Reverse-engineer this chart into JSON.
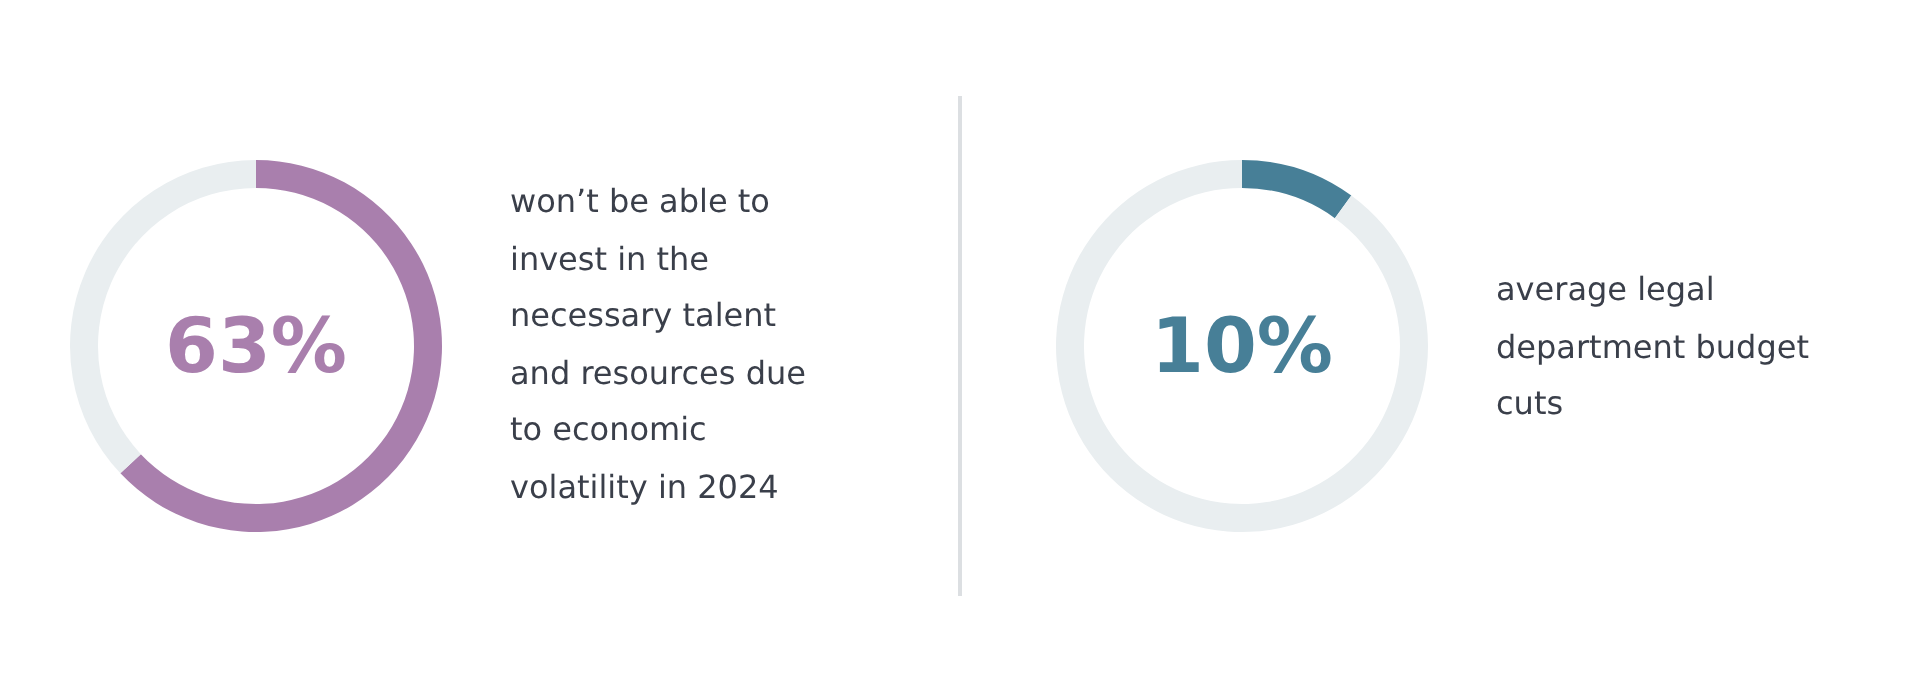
{
  "chart_data": [
    {
      "type": "donut",
      "categories": [
        null,
        null
      ],
      "values": [
        63,
        37
      ],
      "colors": [
        "#a97fad",
        "#e9eef0"
      ],
      "annotations": [
        "63%",
        "won’t be able to invest in the necessary talent and resources due to economic volatility in 2024"
      ]
    },
    {
      "type": "donut",
      "categories": [
        null,
        null
      ],
      "values": [
        10,
        90
      ],
      "colors": [
        "#477f97",
        "#e9eef0"
      ],
      "annotations": [
        "10%",
        "average legal department budget cuts"
      ]
    }
  ]
}
